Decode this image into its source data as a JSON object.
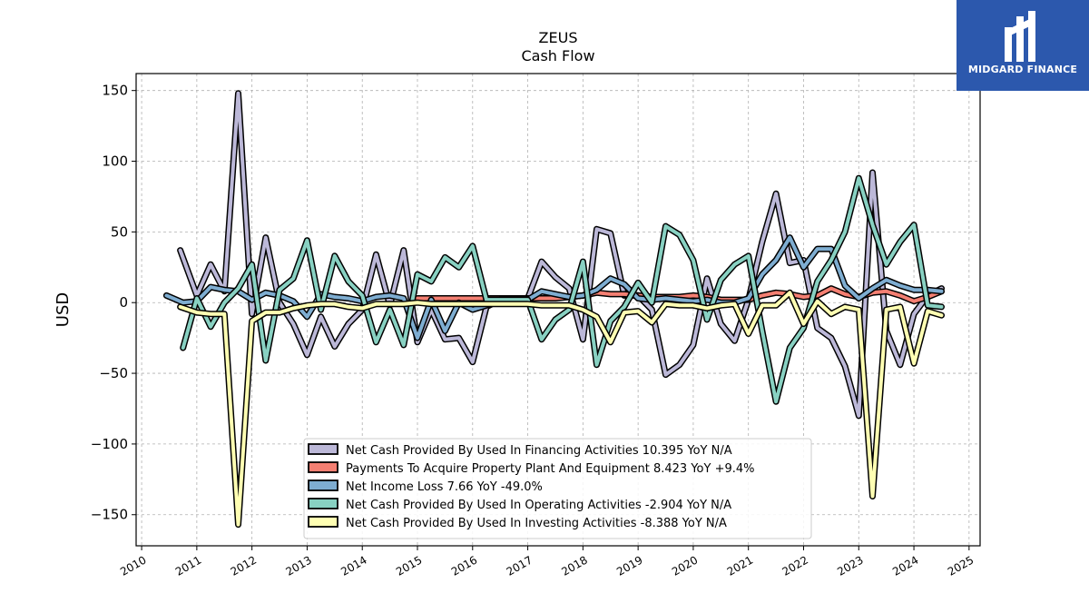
{
  "brand": {
    "name": "MIDGARD FINANCE",
    "logo_icon": "midgard-logo-icon",
    "color": "#2c58ad"
  },
  "chart_data": {
    "type": "line",
    "title": "ZEUS",
    "subtitle": "Cash Flow",
    "xlabel": "",
    "ylabel": "USD",
    "xlim": [
      2009.9,
      2025.2
    ],
    "ylim": [
      -172,
      162
    ],
    "x_ticks": [
      2010,
      2011,
      2012,
      2013,
      2014,
      2015,
      2016,
      2017,
      2018,
      2019,
      2020,
      2021,
      2022,
      2023,
      2024,
      2025
    ],
    "y_ticks": [
      -150,
      -100,
      -50,
      0,
      50,
      100,
      150
    ],
    "y_tick_labels": [
      "−150",
      "−100",
      "−50",
      "0",
      "50",
      "100",
      "150"
    ],
    "grid": true,
    "legend_position": "lower-center",
    "series": [
      {
        "name": "Net Cash Provided By Used In Financing Activities  10.395 YoY N/A",
        "color": "#bcb8d8",
        "points": [
          [
            2010.7,
            37
          ],
          [
            2011.0,
            5
          ],
          [
            2011.25,
            27
          ],
          [
            2011.5,
            8
          ],
          [
            2011.75,
            148
          ],
          [
            2012.0,
            -8
          ],
          [
            2012.25,
            46
          ],
          [
            2012.5,
            0
          ],
          [
            2012.75,
            -15
          ],
          [
            2013.0,
            -37
          ],
          [
            2013.25,
            -10
          ],
          [
            2013.5,
            -31
          ],
          [
            2013.75,
            -15
          ],
          [
            2014.0,
            -5
          ],
          [
            2014.25,
            34
          ],
          [
            2014.5,
            -2
          ],
          [
            2014.75,
            37
          ],
          [
            2015.0,
            -28
          ],
          [
            2015.25,
            -5
          ],
          [
            2015.5,
            -26
          ],
          [
            2015.75,
            -25
          ],
          [
            2016.0,
            -42
          ],
          [
            2016.25,
            -3
          ],
          [
            2016.5,
            2
          ],
          [
            2016.75,
            3
          ],
          [
            2017.0,
            3
          ],
          [
            2017.25,
            29
          ],
          [
            2017.5,
            18
          ],
          [
            2017.75,
            10
          ],
          [
            2018.0,
            -26
          ],
          [
            2018.25,
            52
          ],
          [
            2018.5,
            49
          ],
          [
            2018.75,
            5
          ],
          [
            2019.0,
            5
          ],
          [
            2019.25,
            -5
          ],
          [
            2019.5,
            -51
          ],
          [
            2019.75,
            -44
          ],
          [
            2020.0,
            -30
          ],
          [
            2020.25,
            17
          ],
          [
            2020.5,
            -15
          ],
          [
            2020.75,
            -27
          ],
          [
            2021.0,
            2
          ],
          [
            2021.25,
            43
          ],
          [
            2021.5,
            77
          ],
          [
            2021.75,
            28
          ],
          [
            2022.0,
            30
          ],
          [
            2022.25,
            -18
          ],
          [
            2022.5,
            -25
          ],
          [
            2022.75,
            -45
          ],
          [
            2023.0,
            -80
          ],
          [
            2023.25,
            92
          ],
          [
            2023.5,
            -20
          ],
          [
            2023.75,
            -44
          ],
          [
            2024.0,
            -8
          ],
          [
            2024.25,
            5
          ],
          [
            2024.5,
            10
          ]
        ]
      },
      {
        "name": "Payments To Acquire Property Plant And Equipment  8.423 YoY +9.4%",
        "color": "#f47f72",
        "points": [
          [
            2015.0,
            3
          ],
          [
            2015.5,
            3
          ],
          [
            2016.0,
            3
          ],
          [
            2016.5,
            3
          ],
          [
            2017.0,
            3
          ],
          [
            2017.5,
            3
          ],
          [
            2017.75,
            4
          ],
          [
            2018.0,
            5
          ],
          [
            2018.25,
            7
          ],
          [
            2018.5,
            6
          ],
          [
            2018.75,
            6
          ],
          [
            2019.0,
            5
          ],
          [
            2019.25,
            4
          ],
          [
            2019.5,
            4
          ],
          [
            2019.75,
            4
          ],
          [
            2020.0,
            5
          ],
          [
            2020.25,
            4
          ],
          [
            2020.5,
            2
          ],
          [
            2020.75,
            2
          ],
          [
            2021.0,
            2
          ],
          [
            2021.25,
            5
          ],
          [
            2021.5,
            7
          ],
          [
            2021.75,
            6
          ],
          [
            2022.0,
            4
          ],
          [
            2022.25,
            5
          ],
          [
            2022.5,
            10
          ],
          [
            2022.75,
            6
          ],
          [
            2023.0,
            4
          ],
          [
            2023.25,
            7
          ],
          [
            2023.5,
            8
          ],
          [
            2023.75,
            5
          ],
          [
            2024.0,
            1
          ],
          [
            2024.25,
            4
          ],
          [
            2024.5,
            8
          ]
        ]
      },
      {
        "name": "Net Income Loss  7.66 YoY -49.0%",
        "color": "#7eadd1",
        "points": [
          [
            2010.45,
            5
          ],
          [
            2010.75,
            0
          ],
          [
            2011.0,
            1
          ],
          [
            2011.25,
            11
          ],
          [
            2011.5,
            9
          ],
          [
            2011.75,
            8
          ],
          [
            2012.0,
            2
          ],
          [
            2012.25,
            7
          ],
          [
            2012.5,
            5
          ],
          [
            2012.75,
            1
          ],
          [
            2013.0,
            -10
          ],
          [
            2013.25,
            6
          ],
          [
            2013.5,
            4
          ],
          [
            2013.75,
            3
          ],
          [
            2014.0,
            1
          ],
          [
            2014.25,
            4
          ],
          [
            2014.5,
            5
          ],
          [
            2014.75,
            3
          ],
          [
            2015.0,
            -25
          ],
          [
            2015.25,
            2
          ],
          [
            2015.5,
            -20
          ],
          [
            2015.75,
            0
          ],
          [
            2016.0,
            -5
          ],
          [
            2016.25,
            -2
          ],
          [
            2016.5,
            2
          ],
          [
            2016.75,
            2
          ],
          [
            2017.0,
            2
          ],
          [
            2017.25,
            8
          ],
          [
            2017.5,
            6
          ],
          [
            2017.75,
            4
          ],
          [
            2018.0,
            5
          ],
          [
            2018.25,
            9
          ],
          [
            2018.5,
            17
          ],
          [
            2018.75,
            13
          ],
          [
            2019.0,
            3
          ],
          [
            2019.25,
            2
          ],
          [
            2019.5,
            3
          ],
          [
            2019.75,
            2
          ],
          [
            2020.0,
            1
          ],
          [
            2020.25,
            2
          ],
          [
            2020.5,
            0
          ],
          [
            2020.75,
            0
          ],
          [
            2021.0,
            3
          ],
          [
            2021.25,
            20
          ],
          [
            2021.5,
            30
          ],
          [
            2021.75,
            46
          ],
          [
            2022.0,
            25
          ],
          [
            2022.25,
            38
          ],
          [
            2022.5,
            38
          ],
          [
            2022.75,
            12
          ],
          [
            2023.0,
            3
          ],
          [
            2023.25,
            10
          ],
          [
            2023.5,
            16
          ],
          [
            2023.75,
            12
          ],
          [
            2024.0,
            9
          ],
          [
            2024.25,
            9
          ],
          [
            2024.5,
            8
          ]
        ]
      },
      {
        "name": "Net Cash Provided By Used In Operating Activities  -2.904 YoY N/A",
        "color": "#88d1c2",
        "points": [
          [
            2010.75,
            -32
          ],
          [
            2011.0,
            3
          ],
          [
            2011.25,
            -17
          ],
          [
            2011.5,
            0
          ],
          [
            2011.75,
            10
          ],
          [
            2012.0,
            27
          ],
          [
            2012.25,
            -41
          ],
          [
            2012.5,
            9
          ],
          [
            2012.75,
            17
          ],
          [
            2013.0,
            44
          ],
          [
            2013.25,
            -5
          ],
          [
            2013.5,
            33
          ],
          [
            2013.75,
            15
          ],
          [
            2014.0,
            5
          ],
          [
            2014.25,
            -28
          ],
          [
            2014.5,
            -5
          ],
          [
            2014.75,
            -30
          ],
          [
            2015.0,
            20
          ],
          [
            2015.25,
            15
          ],
          [
            2015.5,
            32
          ],
          [
            2015.75,
            25
          ],
          [
            2016.0,
            40
          ],
          [
            2016.25,
            2
          ],
          [
            2016.5,
            2
          ],
          [
            2016.75,
            2
          ],
          [
            2017.0,
            2
          ],
          [
            2017.25,
            -26
          ],
          [
            2017.5,
            -12
          ],
          [
            2017.75,
            -5
          ],
          [
            2018.0,
            29
          ],
          [
            2018.25,
            -44
          ],
          [
            2018.5,
            -13
          ],
          [
            2018.75,
            -3
          ],
          [
            2019.0,
            14
          ],
          [
            2019.25,
            0
          ],
          [
            2019.5,
            54
          ],
          [
            2019.75,
            48
          ],
          [
            2020.0,
            30
          ],
          [
            2020.25,
            -12
          ],
          [
            2020.5,
            16
          ],
          [
            2020.75,
            27
          ],
          [
            2021.0,
            33
          ],
          [
            2021.25,
            -20
          ],
          [
            2021.5,
            -70
          ],
          [
            2021.75,
            -32
          ],
          [
            2022.0,
            -18
          ],
          [
            2022.25,
            15
          ],
          [
            2022.5,
            30
          ],
          [
            2022.75,
            50
          ],
          [
            2023.0,
            88
          ],
          [
            2023.25,
            55
          ],
          [
            2023.5,
            27
          ],
          [
            2023.75,
            43
          ],
          [
            2024.0,
            55
          ],
          [
            2024.25,
            -2
          ],
          [
            2024.5,
            -3
          ]
        ]
      },
      {
        "name": "Net Cash Provided By Used In Investing Activities  -8.388 YoY N/A",
        "color": "#ffffb3",
        "points": [
          [
            2010.7,
            -3
          ],
          [
            2011.0,
            -7
          ],
          [
            2011.25,
            -8
          ],
          [
            2011.5,
            -8
          ],
          [
            2011.75,
            -157
          ],
          [
            2012.0,
            -13
          ],
          [
            2012.25,
            -7
          ],
          [
            2012.5,
            -7
          ],
          [
            2012.75,
            -4
          ],
          [
            2013.0,
            -2
          ],
          [
            2013.25,
            -1
          ],
          [
            2013.5,
            -1
          ],
          [
            2013.75,
            -3
          ],
          [
            2014.0,
            -4
          ],
          [
            2014.25,
            -1
          ],
          [
            2014.5,
            -1
          ],
          [
            2014.75,
            -1
          ],
          [
            2015.0,
            0
          ],
          [
            2015.25,
            -1
          ],
          [
            2015.5,
            -1
          ],
          [
            2015.75,
            -1
          ],
          [
            2016.0,
            -1
          ],
          [
            2016.25,
            -1
          ],
          [
            2016.5,
            -1
          ],
          [
            2016.75,
            -1
          ],
          [
            2017.0,
            -1
          ],
          [
            2017.25,
            -2
          ],
          [
            2017.5,
            -2
          ],
          [
            2017.75,
            -2
          ],
          [
            2018.0,
            -5
          ],
          [
            2018.25,
            -10
          ],
          [
            2018.5,
            -28
          ],
          [
            2018.75,
            -7
          ],
          [
            2019.0,
            -6
          ],
          [
            2019.25,
            -14
          ],
          [
            2019.5,
            -1
          ],
          [
            2019.75,
            -2
          ],
          [
            2020.0,
            -2
          ],
          [
            2020.25,
            -4
          ],
          [
            2020.5,
            -2
          ],
          [
            2020.75,
            -1
          ],
          [
            2021.0,
            -22
          ],
          [
            2021.25,
            -2
          ],
          [
            2021.5,
            -2
          ],
          [
            2021.75,
            7
          ],
          [
            2022.0,
            -15
          ],
          [
            2022.25,
            1
          ],
          [
            2022.5,
            -8
          ],
          [
            2022.75,
            -3
          ],
          [
            2023.0,
            -5
          ],
          [
            2023.25,
            -137
          ],
          [
            2023.5,
            -5
          ],
          [
            2023.75,
            -3
          ],
          [
            2024.0,
            -43
          ],
          [
            2024.25,
            -6
          ],
          [
            2024.5,
            -9
          ]
        ]
      }
    ]
  }
}
